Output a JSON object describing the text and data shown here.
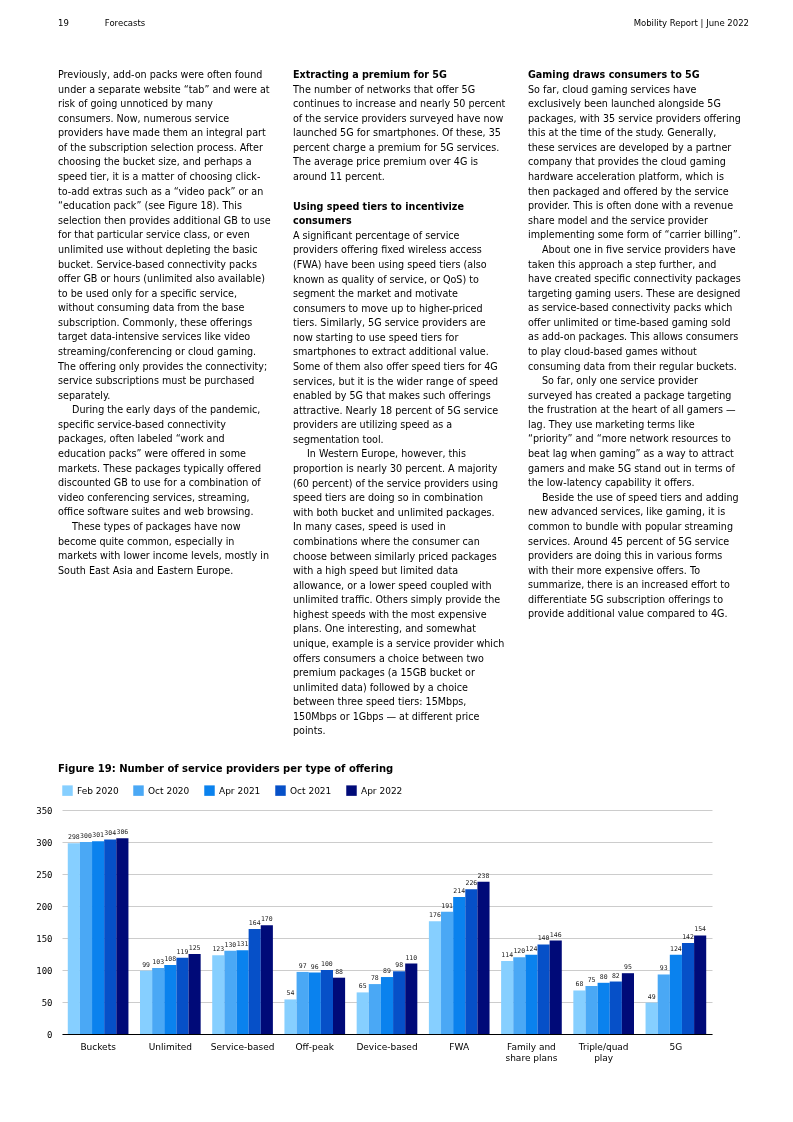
{
  "chart_data": {
    "type": "bar",
    "title": "Figure 19: Number of service providers per type of offering",
    "categories": [
      "Buckets",
      "Unlimited",
      "Service-based",
      "Off-peak",
      "Device-based",
      "FWA",
      "Family and share plans",
      "Triple/quad play",
      "5G"
    ],
    "series": [
      {
        "name": "Feb 2020",
        "color": "#86cfff",
        "values": [
          298,
          99,
          123,
          54,
          65,
          176,
          114,
          68,
          49
        ]
      },
      {
        "name": "Oct 2020",
        "color": "#4aa8f5",
        "values": [
          300,
          103,
          130,
          97,
          78,
          191,
          120,
          75,
          93
        ]
      },
      {
        "name": "Apr 2021",
        "color": "#0a82ee",
        "values": [
          301,
          108,
          131,
          96,
          89,
          214,
          124,
          80,
          124
        ]
      },
      {
        "name": "Oct 2021",
        "color": "#0650c8",
        "values": [
          304,
          119,
          164,
          100,
          98,
          226,
          140,
          82,
          142
        ]
      },
      {
        "name": "Apr 2022",
        "color": "#000a78",
        "values": [
          306,
          125,
          170,
          88,
          110,
          238,
          146,
          95,
          154
        ]
      }
    ],
    "ylim": [
      0,
      350
    ],
    "yticks": [
      0,
      50,
      100,
      150,
      200,
      250,
      300,
      350
    ],
    "grid": "y",
    "legend": "top left",
    "data_labels": true,
    "annotations": [
      "19",
      "Forecasts",
      "Mobility Report | June 2022",
      "Previously, add-on packs were often found under a separate website “tab” and were at risk of going unnoticed by many consumers. Now, numerous service providers have made them an integral part of the subscription selection process. After choosing the bucket size, and perhaps a speed tier, it is a matter of choosing click-to-add extras such as a “video pack” or an “education pack” (see Figure 18). This selection then provides additional GB to use for that particular service class, or even unlimited use without depleting the basic bucket. Service-based connectivity packs offer GB or hours (unlimited also available) to be used only for a specific service, without consuming data from the base subscription. Commonly, these offerings target data-intensive services like video streaming/conferencing or cloud gaming. The offering only provides the connectivity; service subscriptions must be purchased separately.",
      "During the early days of the pandemic, specific service-based connectivity packages, often labeled “work and education packs” were offered in some markets. These packages typically offered discounted GB to use for a combination of video conferencing services, streaming, office software suites and web browsing.",
      "These types of packages have now become quite common, especially in markets with lower income levels, mostly in South East Asia and Eastern Europe.",
      "Extracting a premium for 5G",
      "The number of networks that offer 5G continues to increase and nearly 50 percent of the service providers surveyed have now launched 5G for smartphones. Of these, 35 percent charge a premium for 5G services. The average price premium over 4G is around 11 percent.",
      "Using speed tiers to incentivize consumers",
      "A significant percentage of service providers offering fixed wireless access (FWA) have been using speed tiers (also known as quality of service, or QoS) to segment the market and motivate consumers to move up to higher-priced tiers. Similarly, 5G service providers are now starting to use speed tiers for smartphones to extract additional value. Some of them also offer speed tiers for 4G services, but it is the wider range of speed enabled by 5G that makes such offerings attractive. Nearly 18 percent of 5G service providers are utilizing speed as a segmentation tool.",
      "In Western Europe, however, this proportion is nearly 30 percent. A majority (60 percent) of the service providers using speed tiers are doing so in combination with both bucket and unlimited packages. In many cases, speed is used in combinations where the consumer can choose between similarly priced packages with a high speed but limited data allowance, or a lower speed coupled with unlimited traffic. Others simply provide the highest speeds with the most expensive plans. One interesting, and somewhat unique, example is a service provider which offers consumers a choice between two premium packages (a 15GB bucket or unlimited data) followed by a choice between three speed tiers: 15Mbps, 150Mbps or 1Gbps — at different price points.",
      "Gaming draws consumers to 5G",
      "So far, cloud gaming services have exclusively been launched alongside 5G packages, with 35 service providers offering this at the time of the study. Generally, these services are developed by a partner company that provides the cloud gaming hardware acceleration platform, which is then packaged and offered by the service provider. This is often done with a revenue share model and the service provider implementing some form of “carrier billing”.",
      "About one in five service providers have taken this approach a step further, and have created specific connectivity packages targeting gaming users. These are designed as service-based connectivity packs which offer unlimited or time-based gaming sold as add-on packages. This allows consumers to play cloud-based games without consuming data from their regular buckets.",
      "So far, only one service provider surveyed has created a package targeting the frustration at the heart of all gamers — lag. They use marketing terms like “priority” and “more network resources to beat lag when gaming” as a way to attract gamers and make 5G stand out in terms of the low-latency capability it offers.",
      "Beside the use of speed tiers and adding new advanced services, like gaming, it is common to bundle with popular streaming services. Around 45 percent of 5G service providers are doing this in various forms with their more expensive offers. To summarize, there is an increased effort to differentiate 5G subscription offerings to provide additional value compared to 4G."
    ]
  }
}
